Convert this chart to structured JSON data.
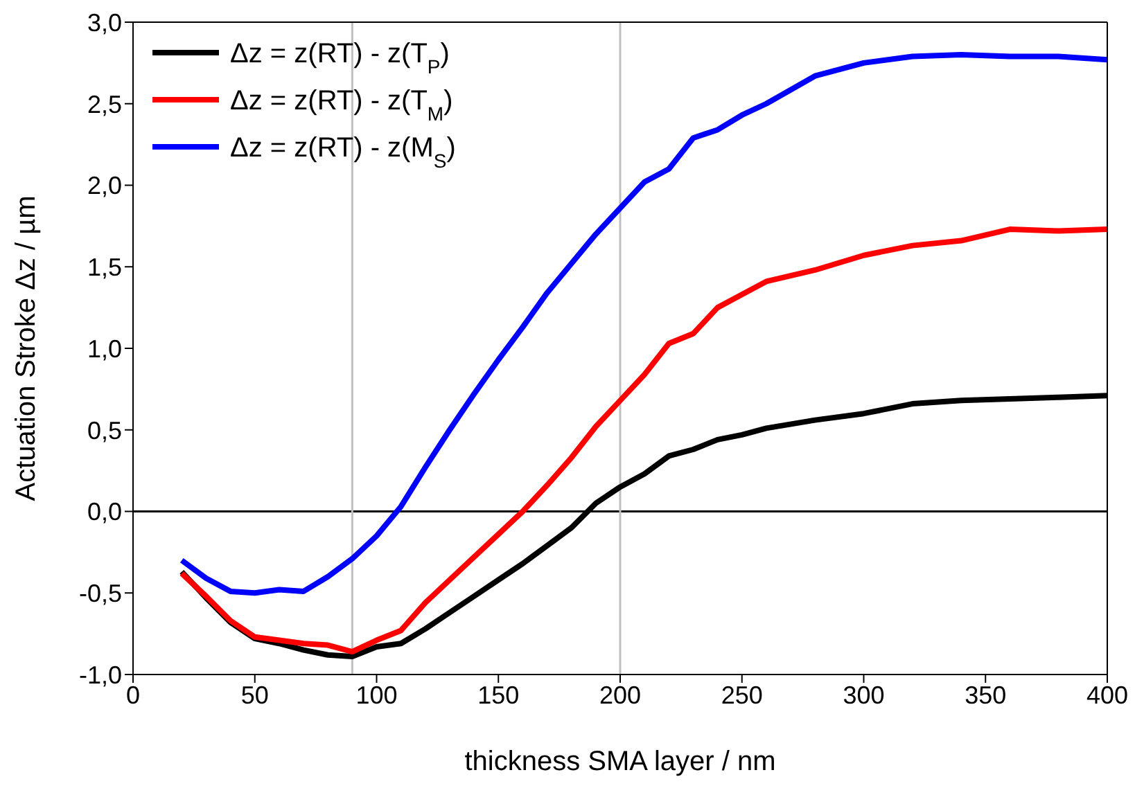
{
  "chart_data": {
    "type": "line",
    "xlabel": "thickness SMA layer / nm",
    "ylabel": "Actuation Stroke Δz / µm",
    "x": [
      20,
      30,
      40,
      50,
      60,
      70,
      80,
      90,
      100,
      110,
      120,
      130,
      140,
      150,
      160,
      170,
      180,
      190,
      200,
      210,
      220,
      230,
      240,
      250,
      260,
      280,
      300,
      320,
      340,
      360,
      380,
      400
    ],
    "series": [
      {
        "name": "Δz = z(RT) - z(T$_{P}$)",
        "color": "#000000",
        "values": [
          -0.37,
          -0.53,
          -0.68,
          -0.78,
          -0.81,
          -0.85,
          -0.88,
          -0.89,
          -0.83,
          -0.81,
          -0.72,
          -0.62,
          -0.52,
          -0.42,
          -0.32,
          -0.21,
          -0.1,
          0.05,
          0.15,
          0.23,
          0.34,
          0.38,
          0.44,
          0.47,
          0.51,
          0.56,
          0.6,
          0.66,
          0.68,
          0.69,
          0.7,
          0.71
        ]
      },
      {
        "name": "Δz = z(RT) - z(T$_{M}$)",
        "color": "#ff0000",
        "values": [
          -0.38,
          -0.52,
          -0.67,
          -0.77,
          -0.79,
          -0.81,
          -0.82,
          -0.86,
          -0.79,
          -0.73,
          -0.56,
          -0.42,
          -0.28,
          -0.14,
          0.0,
          0.16,
          0.33,
          0.52,
          0.68,
          0.84,
          1.03,
          1.09,
          1.25,
          1.33,
          1.41,
          1.48,
          1.57,
          1.63,
          1.66,
          1.73,
          1.72,
          1.73
        ]
      },
      {
        "name": "Δz = z(RT) - z(M$_{S}$)",
        "color": "#0000ff",
        "values": [
          -0.3,
          -0.41,
          -0.49,
          -0.5,
          -0.48,
          -0.49,
          -0.4,
          -0.29,
          -0.15,
          0.03,
          0.27,
          0.5,
          0.72,
          0.93,
          1.13,
          1.34,
          1.52,
          1.7,
          1.86,
          2.02,
          2.1,
          2.29,
          2.34,
          2.43,
          2.5,
          2.67,
          2.75,
          2.79,
          2.8,
          2.79,
          2.79,
          2.77
        ]
      }
    ],
    "xlim": [
      0,
      400
    ],
    "xticks": [
      0,
      50,
      100,
      150,
      200,
      250,
      300,
      350,
      400
    ],
    "ylim": [
      -1.0,
      3.0
    ],
    "yticks": [
      {
        "value": -1.0,
        "label": "-1,0"
      },
      {
        "value": -0.5,
        "label": "-0,5"
      },
      {
        "value": 0,
        "label": "0,0"
      },
      {
        "value": 0.5,
        "label": "0,5"
      },
      {
        "value": 1.0,
        "label": "1,0"
      },
      {
        "value": 1.5,
        "label": "1,5"
      },
      {
        "value": 2.0,
        "label": "2,0"
      },
      {
        "value": 2.5,
        "label": "2,5"
      },
      {
        "value": 3.0,
        "label": "3,0"
      }
    ],
    "ref_lines": [
      {
        "axis": "y",
        "value": 0,
        "color": "#000000"
      },
      {
        "axis": "x",
        "value": 90,
        "color": "#c0c0c0"
      },
      {
        "axis": "x",
        "value": 200,
        "color": "#c0c0c0"
      }
    ],
    "legend": "top left",
    "marker": "none",
    "line_style": "solid"
  }
}
